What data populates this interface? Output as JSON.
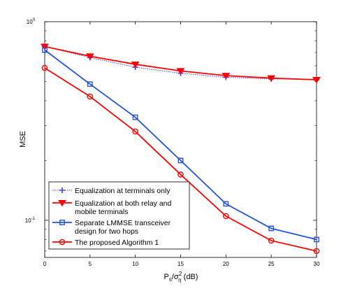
{
  "chart_data": {
    "type": "line",
    "title": "",
    "xlabel_main": "P",
    "xlabel_sub1": "s",
    "xlabel_mid": "/σ",
    "xlabel_sup": "2",
    "xlabel_sub2": "η",
    "xlabel_unit": " (dB)",
    "ylabel": "MSE",
    "xlim": [
      0,
      30
    ],
    "ylim": [
      0.065,
      1.0
    ],
    "yscale": "log",
    "grid": false,
    "legend_position": "bottom-left",
    "x": [
      0,
      5,
      10,
      15,
      20,
      25,
      30
    ],
    "x_ticks": [
      "0",
      "5",
      "10",
      "15",
      "20",
      "25",
      "30"
    ],
    "y_ticks": [
      {
        "base": "10",
        "exp": "0",
        "value": 1.0
      },
      {
        "base": "10",
        "exp": "-1",
        "value": 0.1
      }
    ],
    "series": [
      {
        "name": "Equalization at terminals only",
        "values": [
          0.75,
          0.66,
          0.59,
          0.55,
          0.525,
          0.515,
          0.51
        ],
        "color": "#3a3aff",
        "style": "dotted",
        "marker": "plus"
      },
      {
        "name_lines": [
          "Equalization at both relay and",
          "mobile terminals"
        ],
        "values": [
          0.75,
          0.67,
          0.61,
          0.565,
          0.535,
          0.52,
          0.51
        ],
        "color": "#ff0000",
        "style": "solid",
        "marker": "triangle-down"
      },
      {
        "name_lines": [
          "Separate LMMSE transceiver",
          "design for two hops"
        ],
        "values": [
          0.72,
          0.485,
          0.33,
          0.2,
          0.121,
          0.091,
          0.08
        ],
        "color": "#2255dd",
        "style": "solid",
        "marker": "square"
      },
      {
        "name": "The proposed Algorithm 1",
        "values": [
          0.585,
          0.42,
          0.28,
          0.17,
          0.105,
          0.079,
          0.07
        ],
        "color": "#ff0000",
        "style": "solid",
        "marker": "circle"
      }
    ]
  }
}
